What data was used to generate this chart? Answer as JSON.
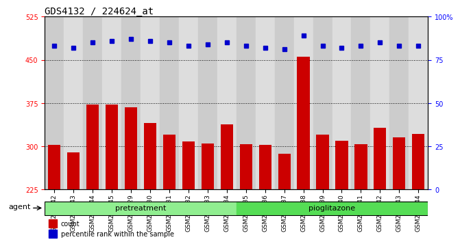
{
  "title": "GDS4132 / 224624_at",
  "samples": [
    "GSM201542",
    "GSM201543",
    "GSM201544",
    "GSM201545",
    "GSM201829",
    "GSM201830",
    "GSM201831",
    "GSM201832",
    "GSM201833",
    "GSM201834",
    "GSM201835",
    "GSM201836",
    "GSM201837",
    "GSM201838",
    "GSM201839",
    "GSM201840",
    "GSM201841",
    "GSM201842",
    "GSM201843",
    "GSM201844"
  ],
  "bar_values": [
    302,
    289,
    372,
    372,
    368,
    340,
    320,
    308,
    305,
    338,
    304,
    302,
    287,
    456,
    320,
    310,
    304,
    332,
    315,
    322
  ],
  "dot_values": [
    83,
    82,
    85,
    86,
    87,
    86,
    85,
    83,
    84,
    85,
    83,
    82,
    81,
    89,
    83,
    82,
    83,
    85,
    83,
    83
  ],
  "bar_color": "#CC0000",
  "dot_color": "#0000CC",
  "ylim_left": [
    225,
    525
  ],
  "yticks_left": [
    225,
    300,
    375,
    450,
    525
  ],
  "ylim_right": [
    0,
    100
  ],
  "yticks_right": [
    0,
    25,
    50,
    75,
    100
  ],
  "ytick_right_labels": [
    "0",
    "25",
    "50",
    "75",
    "100%"
  ],
  "grid_values": [
    300,
    375,
    450
  ],
  "n_pretreatment": 10,
  "n_pioglitazone": 10,
  "pretreatment_color": "#90EE90",
  "pioglitazone_color": "#55DD55",
  "col_even_color": "#CCCCCC",
  "col_odd_color": "#DDDDDD",
  "agent_label": "agent",
  "legend_count_label": "count",
  "legend_pct_label": "percentile rank within the sample",
  "title_fontsize": 10,
  "tick_fontsize": 7,
  "label_fontsize": 8
}
